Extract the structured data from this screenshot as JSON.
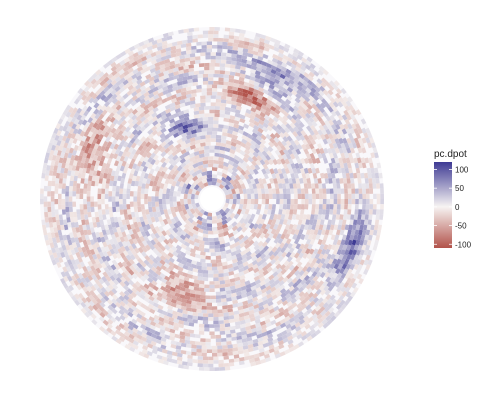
{
  "chart_data": {
    "type": "heatmap",
    "projection": "polar",
    "title": "",
    "xlabel": "",
    "ylabel": "",
    "color_variable": "pc.dpot",
    "colorbar": {
      "title": "pc.dpot",
      "limits": [
        -110,
        120
      ],
      "ticks": [
        100,
        50,
        0,
        -50,
        -100
      ],
      "tick_labels": [
        "100",
        "50",
        "0",
        "-50",
        "-100"
      ],
      "colors": {
        "low": "#b2524a",
        "mid": "#f7f4f3",
        "high": "#3e3a94"
      },
      "placement": "right"
    },
    "grid": false,
    "value_range": [
      -110,
      120
    ],
    "features": {
      "center_hole": "white",
      "pattern": "concentric rings of alternating red/blue speckle",
      "notable_clusters": [
        {
          "sign": "positive",
          "angle_deg": 20,
          "radius_frac": 0.85
        },
        {
          "sign": "positive",
          "angle_deg": -60,
          "radius_frac": 0.8
        },
        {
          "sign": "negative",
          "angle_deg": 110,
          "radius_frac": 0.55
        },
        {
          "sign": "negative",
          "angle_deg": 200,
          "radius_frac": 0.7
        },
        {
          "sign": "negative",
          "angle_deg": 290,
          "radius_frac": 0.6
        },
        {
          "sign": "positive",
          "angle_deg": 250,
          "radius_frac": 0.4
        }
      ]
    }
  }
}
